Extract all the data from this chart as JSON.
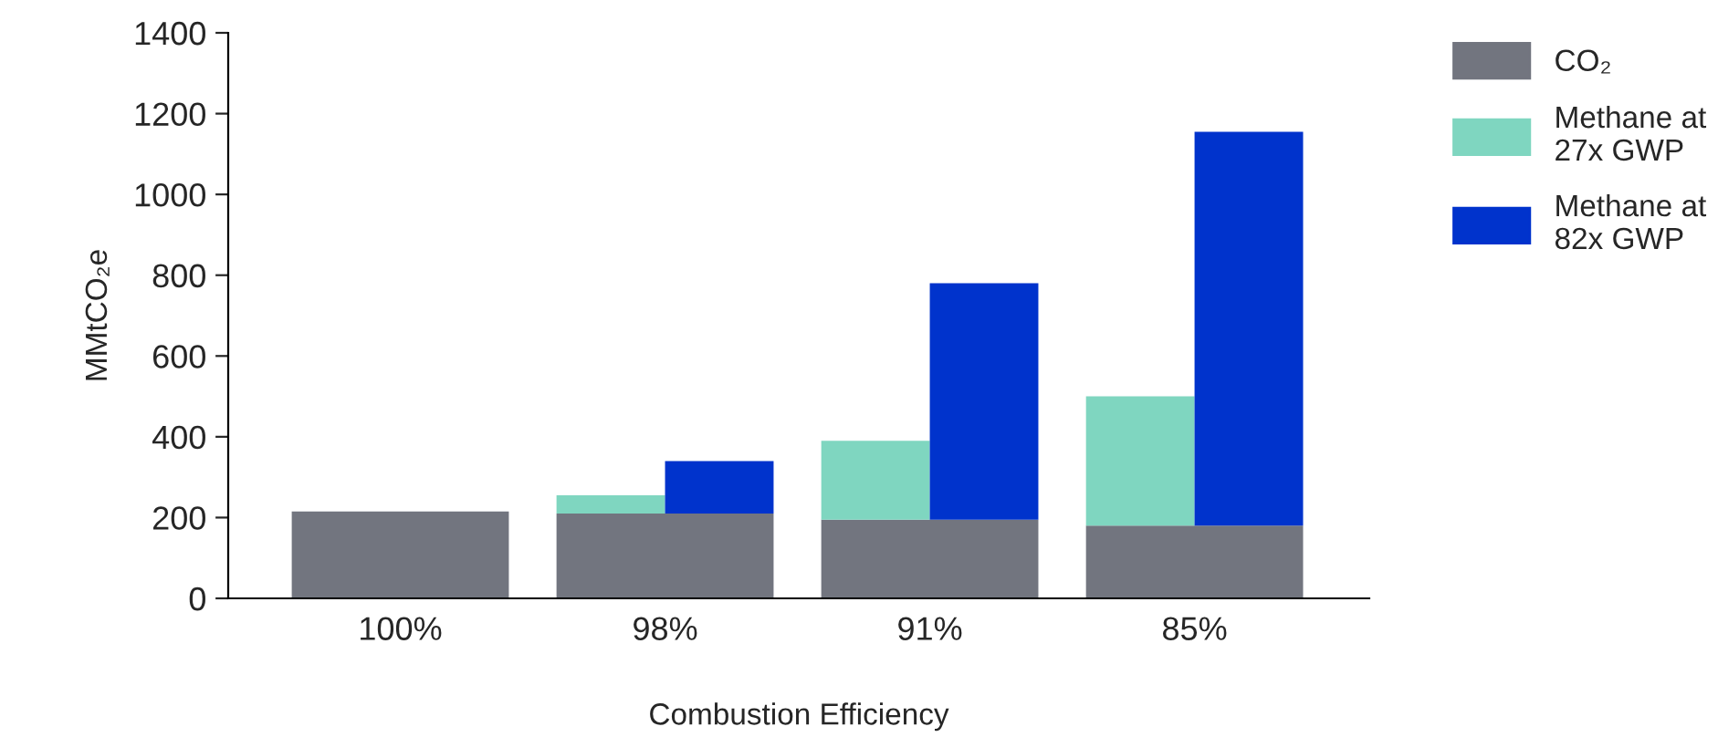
{
  "chart_data": {
    "type": "bar",
    "xlabel": "Combustion Efficiency",
    "ylabel": "MMtCO₂e",
    "categories": [
      "100%",
      "98%",
      "91%",
      "85%"
    ],
    "series": [
      {
        "name": "CO₂",
        "color": "#72757f",
        "values": [
          215,
          210,
          195,
          180
        ]
      },
      {
        "name": "Methane at\n27x GWP",
        "color": "#7fd6c0",
        "base": [
          null,
          210,
          195,
          180
        ],
        "values": [
          null,
          45,
          195,
          320
        ]
      },
      {
        "name": "Methane at\n82x GWP",
        "color": "#0033cc",
        "base": [
          null,
          210,
          195,
          180
        ],
        "values": [
          null,
          130,
          585,
          975
        ]
      }
    ],
    "ylim": [
      0,
      1400
    ],
    "yticks": [
      0,
      200,
      400,
      600,
      800,
      1000,
      1200,
      1400
    ],
    "legend": "top right"
  }
}
